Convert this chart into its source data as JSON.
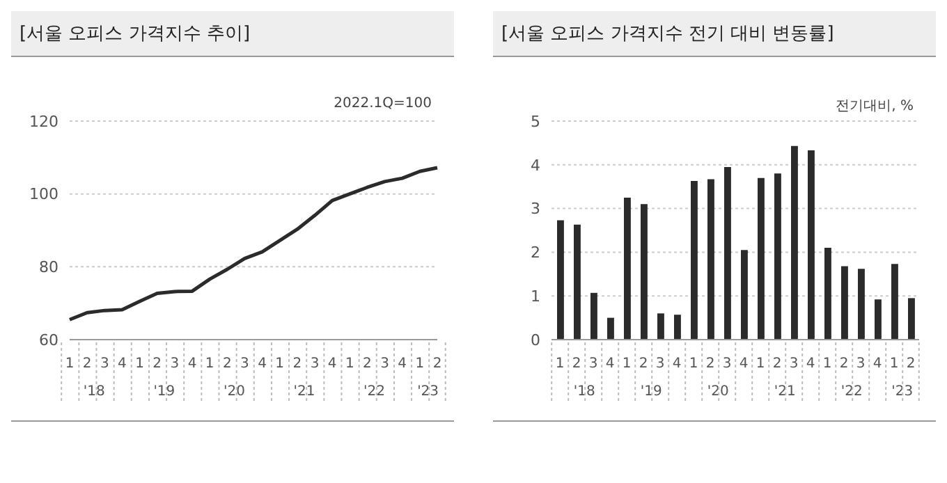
{
  "chart_data": [
    {
      "type": "line",
      "title": "[서울 오피스 가격지수 추이]",
      "categories": [
        "1",
        "2",
        "3",
        "4",
        "1",
        "2",
        "3",
        "4",
        "1",
        "2",
        "3",
        "4",
        "1",
        "2",
        "3",
        "4",
        "1",
        "2",
        "3",
        "4",
        "1",
        "2"
      ],
      "series": [
        {
          "color": "#2b2b2b",
          "values": [
            65.5,
            67.4,
            68.0,
            68.2,
            70.5,
            72.7,
            73.2,
            73.3,
            76.6,
            79.3,
            82.3,
            84.1,
            87.2,
            90.3,
            94.1,
            98.2,
            100,
            101.8,
            103.4,
            104.3,
            106.2,
            107.2
          ]
        }
      ],
      "annotations": [
        "2022.1Q=100",
        "'18",
        "'19",
        "'20",
        "'21",
        "'22",
        "'23"
      ],
      "ylim": [
        60,
        120
      ],
      "yticks": [
        60,
        80,
        100,
        120
      ],
      "grid": "y",
      "legend": false,
      "marker": "none",
      "line_style": "solid"
    },
    {
      "type": "bar",
      "title": "[서울 오피스 가격지수 전기 대비 변동률]",
      "categories": [
        "1",
        "2",
        "3",
        "4",
        "1",
        "2",
        "3",
        "4",
        "1",
        "2",
        "3",
        "4",
        "1",
        "2",
        "3",
        "4",
        "1",
        "2",
        "3",
        "4",
        "1",
        "2"
      ],
      "series": [
        {
          "color": "#2b2b2b",
          "values": [
            2.73,
            2.63,
            1.07,
            0.5,
            3.25,
            3.1,
            0.6,
            0.57,
            3.63,
            3.67,
            3.95,
            2.05,
            3.7,
            3.8,
            4.43,
            4.33,
            2.1,
            1.68,
            1.62,
            0.92,
            1.73,
            0.95
          ]
        }
      ],
      "annotations": [
        "전기대비, %",
        "'18",
        "'19",
        "'20",
        "'21",
        "'22",
        "'23"
      ],
      "ylim": [
        0,
        5
      ],
      "yticks": [
        0,
        1,
        2,
        3,
        4,
        5
      ],
      "grid": "y",
      "legend": false
    }
  ]
}
